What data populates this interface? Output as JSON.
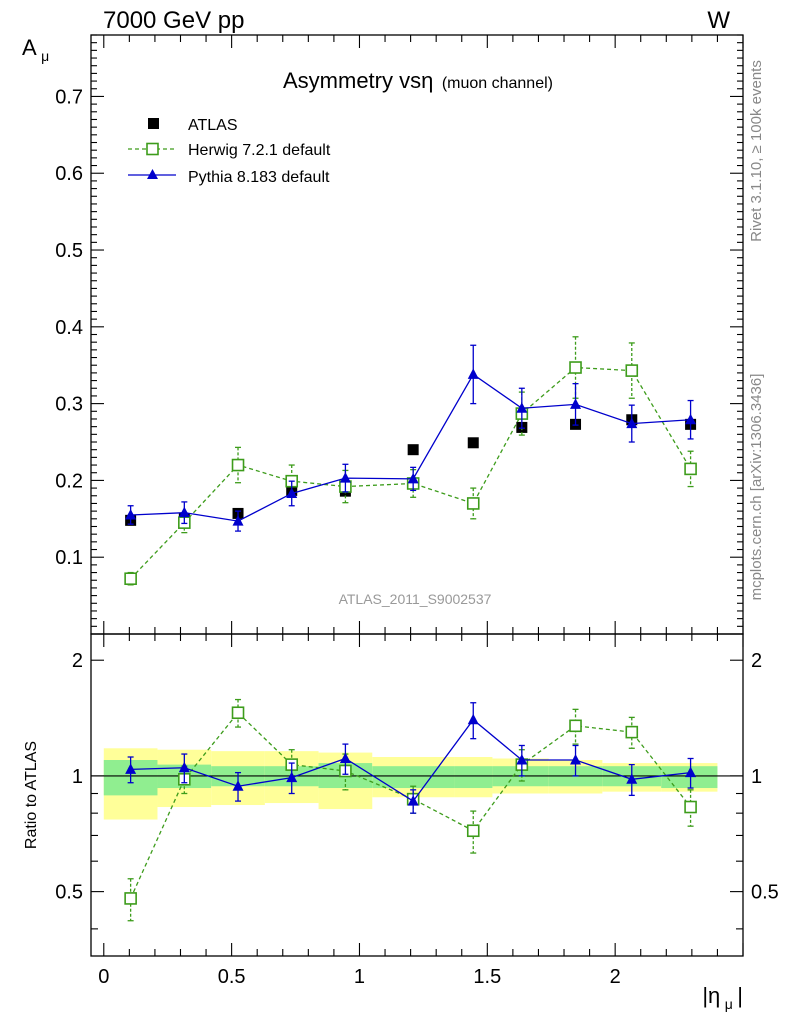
{
  "header": {
    "left": "7000 GeV pp",
    "right": "W"
  },
  "side_labels": {
    "rivet": "Rivet 3.1.10, ≥ 100k events",
    "mcplots": "mcplots.cern.ch [arXiv:1306.3436]"
  },
  "chart_data": [
    {
      "type": "scatter",
      "title": "Asymmetry vsη",
      "title_suffix": "(muon channel)",
      "ylabel": "A",
      "ylabel_sub": "μ",
      "watermark": "ATLAS_2011_S9002537",
      "xlim": [
        -0.05,
        2.5
      ],
      "ylim": [
        0,
        0.78
      ],
      "yticks": [
        0.1,
        0.2,
        0.3,
        0.4,
        0.5,
        0.6,
        0.7
      ],
      "ytick_labels": [
        "0.1",
        "0.2",
        "0.3",
        "0.4",
        "0.5",
        "0.6",
        "0.7"
      ],
      "legend_position": "top-left",
      "series": [
        {
          "name": "ATLAS",
          "style": "data",
          "color": "#000000",
          "x": [
            0.105,
            0.315,
            0.525,
            0.735,
            0.945,
            1.21,
            1.445,
            1.635,
            1.845,
            2.065,
            2.295
          ],
          "y": [
            0.148,
            0.15,
            0.157,
            0.187,
            0.186,
            0.24,
            0.249,
            0.269,
            0.273,
            0.279,
            0.273
          ],
          "err": [
            0.004,
            0.004,
            0.004,
            0.004,
            0.004,
            0.004,
            0.004,
            0.004,
            0.004,
            0.004,
            0.004
          ]
        },
        {
          "name": "Herwig 7.2.1 default",
          "style": "open-square-dashed",
          "color": "#3d9c1b",
          "x": [
            0.105,
            0.315,
            0.525,
            0.735,
            0.945,
            1.21,
            1.445,
            1.635,
            1.845,
            2.065,
            2.295
          ],
          "y": [
            0.072,
            0.145,
            0.22,
            0.199,
            0.192,
            0.196,
            0.17,
            0.287,
            0.347,
            0.343,
            0.215
          ],
          "err": [
            0.008,
            0.013,
            0.023,
            0.021,
            0.021,
            0.018,
            0.02,
            0.028,
            0.04,
            0.036,
            0.023
          ]
        },
        {
          "name": "Pythia 8.183 default",
          "style": "triangle-solid",
          "color": "#0000cc",
          "x": [
            0.105,
            0.315,
            0.525,
            0.735,
            0.945,
            1.21,
            1.445,
            1.635,
            1.845,
            2.065,
            2.295
          ],
          "y": [
            0.155,
            0.158,
            0.147,
            0.183,
            0.203,
            0.202,
            0.338,
            0.294,
            0.299,
            0.274,
            0.279
          ],
          "err": [
            0.012,
            0.014,
            0.013,
            0.016,
            0.018,
            0.015,
            0.038,
            0.026,
            0.027,
            0.024,
            0.025
          ]
        }
      ]
    },
    {
      "type": "scatter",
      "ylabel": "Ratio to ATLAS",
      "xlabel": "|η",
      "xlabel_sub": "μ",
      "xlabel_suffix": "|",
      "xlim": [
        -0.05,
        2.5
      ],
      "ylim": [
        0.34,
        2.34
      ],
      "xticks": [
        0,
        0.5,
        1,
        1.5,
        2
      ],
      "xtick_labels": [
        "0",
        "0.5",
        "1",
        "1.5",
        "2"
      ],
      "yticks": [
        0.5,
        1,
        2
      ],
      "ytick_labels": [
        "0.5",
        "1",
        "2"
      ],
      "reference_line": 1,
      "bands": {
        "bins": [
          [
            0,
            0.21
          ],
          [
            0.21,
            0.42
          ],
          [
            0.42,
            0.63
          ],
          [
            0.63,
            0.84
          ],
          [
            0.84,
            1.05
          ],
          [
            1.05,
            1.37
          ],
          [
            1.37,
            1.52
          ],
          [
            1.52,
            1.74
          ],
          [
            1.74,
            1.95
          ],
          [
            1.95,
            2.18
          ],
          [
            2.18,
            2.4
          ]
        ],
        "stat": [
          [
            0.89,
            1.1
          ],
          [
            0.93,
            1.07
          ],
          [
            0.94,
            1.06
          ],
          [
            0.94,
            1.06
          ],
          [
            0.93,
            1.08
          ],
          [
            0.93,
            1.06
          ],
          [
            0.93,
            1.06
          ],
          [
            0.94,
            1.06
          ],
          [
            0.94,
            1.06
          ],
          [
            0.94,
            1.06
          ],
          [
            0.93,
            1.06
          ]
        ],
        "total": [
          [
            0.77,
            1.18
          ],
          [
            0.83,
            1.17
          ],
          [
            0.84,
            1.16
          ],
          [
            0.85,
            1.16
          ],
          [
            0.82,
            1.15
          ],
          [
            0.88,
            1.12
          ],
          [
            0.88,
            1.12
          ],
          [
            0.9,
            1.11
          ],
          [
            0.9,
            1.1
          ],
          [
            0.91,
            1.08
          ],
          [
            0.91,
            1.08
          ]
        ],
        "stat_color": "#90ee90",
        "total_color": "#ffff99"
      },
      "series": [
        {
          "name": "Herwig 7.2.1 default",
          "style": "open-square-dashed",
          "color": "#3d9c1b",
          "x": [
            0.105,
            0.315,
            0.525,
            0.735,
            0.945,
            1.21,
            1.445,
            1.635,
            1.845,
            2.065,
            2.295
          ],
          "y": [
            0.48,
            0.98,
            1.46,
            1.07,
            1.03,
            0.87,
            0.72,
            1.07,
            1.35,
            1.3,
            0.83
          ],
          "err": [
            0.06,
            0.08,
            0.12,
            0.1,
            0.11,
            0.07,
            0.09,
            0.1,
            0.14,
            0.12,
            0.09
          ]
        },
        {
          "name": "Pythia 8.183 default",
          "style": "triangle-solid",
          "color": "#0000cc",
          "x": [
            0.105,
            0.315,
            0.525,
            0.735,
            0.945,
            1.21,
            1.445,
            1.635,
            1.845,
            2.065,
            2.295
          ],
          "y": [
            1.04,
            1.05,
            0.94,
            0.99,
            1.11,
            0.86,
            1.4,
            1.1,
            1.1,
            0.98,
            1.02
          ],
          "err": [
            0.08,
            0.09,
            0.08,
            0.09,
            0.1,
            0.06,
            0.15,
            0.1,
            0.1,
            0.09,
            0.09
          ]
        }
      ]
    }
  ]
}
